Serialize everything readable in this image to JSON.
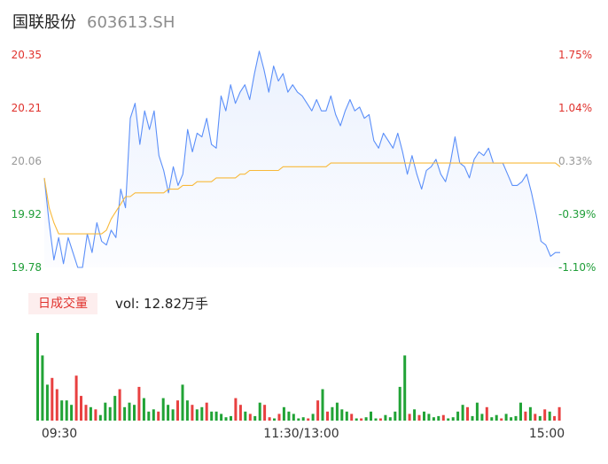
{
  "header": {
    "stock_name": "国联股份",
    "stock_code": "603613.SH"
  },
  "volume_panel": {
    "tab_label": "日成交量",
    "vol_text": "vol: 12.82万手"
  },
  "colors": {
    "price_line": "#5b8ff9",
    "avg_line": "#f8b93a",
    "up": "#e84040",
    "down": "#21a336",
    "axis_up": "#e0322d",
    "axis_down": "#1f9e38",
    "axis_neutral": "#999999"
  },
  "chart_data": [
    {
      "type": "line",
      "title": "",
      "x_ticks": [
        "09:30",
        "11:30/13:00",
        "15:00"
      ],
      "y_left_ticks": [
        "20.35",
        "20.21",
        "20.06",
        "19.92",
        "19.78"
      ],
      "y_right_ticks": [
        "1.75%",
        "1.04%",
        "0.33%",
        "-0.39%",
        "-1.10%"
      ],
      "ylim": [
        19.78,
        20.35
      ],
      "prev_close": 20.0,
      "series": [
        {
          "role": "price",
          "values": [
            20.02,
            19.9,
            19.8,
            19.86,
            19.79,
            19.86,
            19.82,
            19.78,
            19.78,
            19.87,
            19.82,
            19.9,
            19.85,
            19.84,
            19.88,
            19.86,
            19.99,
            19.94,
            20.18,
            20.22,
            20.11,
            20.2,
            20.15,
            20.2,
            20.08,
            20.04,
            19.98,
            20.05,
            20.0,
            20.03,
            20.15,
            20.09,
            20.14,
            20.13,
            20.18,
            20.11,
            20.1,
            20.24,
            20.2,
            20.27,
            20.22,
            20.25,
            20.27,
            20.23,
            20.3,
            20.36,
            20.31,
            20.25,
            20.32,
            20.28,
            20.3,
            20.25,
            20.27,
            20.25,
            20.24,
            20.22,
            20.2,
            20.23,
            20.2,
            20.2,
            20.24,
            20.19,
            20.16,
            20.2,
            20.23,
            20.2,
            20.21,
            20.18,
            20.19,
            20.12,
            20.1,
            20.14,
            20.12,
            20.1,
            20.14,
            20.09,
            20.03,
            20.08,
            20.03,
            19.99,
            20.04,
            20.05,
            20.07,
            20.03,
            20.01,
            20.06,
            20.13,
            20.06,
            20.05,
            20.02,
            20.07,
            20.09,
            20.08,
            20.1,
            20.06,
            20.06,
            20.06,
            20.03,
            20.0,
            20.0,
            20.01,
            20.03,
            19.98,
            19.92,
            19.85,
            19.84,
            19.81,
            19.82,
            19.82
          ]
        },
        {
          "role": "average",
          "values": [
            20.02,
            19.94,
            19.9,
            19.87,
            19.87,
            19.87,
            19.87,
            19.87,
            19.87,
            19.87,
            19.87,
            19.87,
            19.87,
            19.88,
            19.91,
            19.93,
            19.95,
            19.97,
            19.97,
            19.98,
            19.98,
            19.98,
            19.98,
            19.98,
            19.98,
            19.98,
            19.99,
            19.99,
            19.99,
            20.0,
            20.0,
            20.0,
            20.01,
            20.01,
            20.01,
            20.01,
            20.02,
            20.02,
            20.02,
            20.02,
            20.02,
            20.03,
            20.03,
            20.04,
            20.04,
            20.04,
            20.04,
            20.04,
            20.04,
            20.04,
            20.05,
            20.05,
            20.05,
            20.05,
            20.05,
            20.05,
            20.05,
            20.05,
            20.05,
            20.05,
            20.06,
            20.06,
            20.06,
            20.06,
            20.06,
            20.06,
            20.06,
            20.06,
            20.06,
            20.06,
            20.06,
            20.06,
            20.06,
            20.06,
            20.06,
            20.06,
            20.06,
            20.06,
            20.06,
            20.06,
            20.06,
            20.06,
            20.06,
            20.06,
            20.06,
            20.06,
            20.06,
            20.06,
            20.06,
            20.06,
            20.06,
            20.06,
            20.06,
            20.06,
            20.06,
            20.06,
            20.06,
            20.06,
            20.06,
            20.06,
            20.06,
            20.06,
            20.06,
            20.06,
            20.06,
            20.06,
            20.06,
            20.06,
            20.05
          ]
        }
      ]
    },
    {
      "type": "bar",
      "title": "",
      "values": [
        78,
        58,
        32,
        38,
        28,
        18,
        18,
        14,
        40,
        22,
        14,
        12,
        10,
        5,
        16,
        12,
        22,
        28,
        12,
        16,
        14,
        30,
        20,
        8,
        10,
        8,
        20,
        14,
        10,
        18,
        32,
        18,
        14,
        10,
        12,
        16,
        8,
        8,
        6,
        3,
        4,
        20,
        14,
        8,
        6,
        4,
        16,
        14,
        3,
        2,
        6,
        12,
        8,
        6,
        2,
        3,
        2,
        6,
        18,
        28,
        8,
        12,
        16,
        10,
        8,
        6,
        2,
        2,
        3,
        8,
        2,
        2,
        5,
        3,
        8,
        30,
        58,
        6,
        10,
        5,
        8,
        6,
        3,
        4,
        5,
        2,
        3,
        8,
        14,
        12,
        4,
        16,
        6,
        12,
        3,
        5,
        2,
        6,
        3,
        4,
        16,
        8,
        12,
        6,
        4,
        10,
        8,
        4,
        12
      ],
      "directions": [
        0,
        0,
        0,
        1,
        1,
        0,
        0,
        0,
        1,
        1,
        1,
        0,
        1,
        0,
        0,
        0,
        0,
        1,
        0,
        0,
        0,
        1,
        0,
        0,
        0,
        1,
        0,
        0,
        0,
        1,
        0,
        0,
        1,
        0,
        0,
        1,
        0,
        0,
        0,
        0,
        0,
        1,
        1,
        0,
        1,
        0,
        0,
        1,
        1,
        0,
        1,
        0,
        0,
        0,
        0,
        0,
        1,
        0,
        1,
        0,
        1,
        0,
        0,
        0,
        0,
        1,
        0,
        1,
        0,
        0,
        0,
        1,
        0,
        0,
        0,
        0,
        0,
        1,
        0,
        1,
        0,
        0,
        0,
        0,
        1,
        0,
        0,
        0,
        0,
        1,
        0,
        0,
        0,
        1,
        0,
        0,
        1,
        0,
        0,
        0,
        0,
        1,
        0,
        1,
        0,
        1,
        0,
        1,
        1
      ]
    }
  ]
}
